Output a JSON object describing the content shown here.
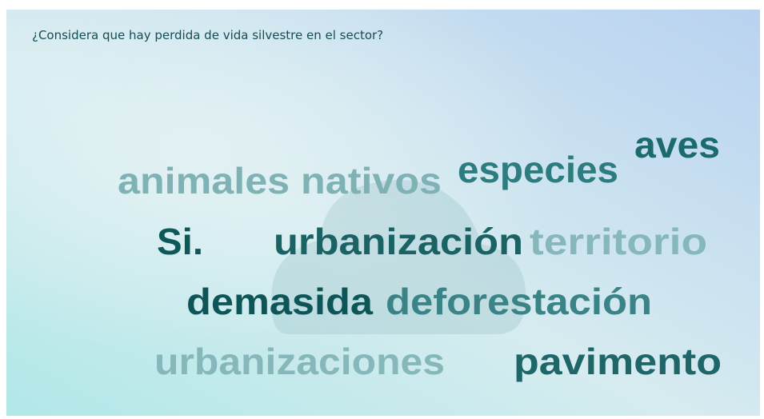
{
  "question": "¿Considera que hay perdida de vida silvestre en el sector?",
  "words": [
    "animales nativos",
    "especies",
    "aves",
    "Si.",
    "urbanización",
    "territorio",
    "demasida",
    "deforestación",
    "urbanizaciones",
    "pavimento"
  ]
}
